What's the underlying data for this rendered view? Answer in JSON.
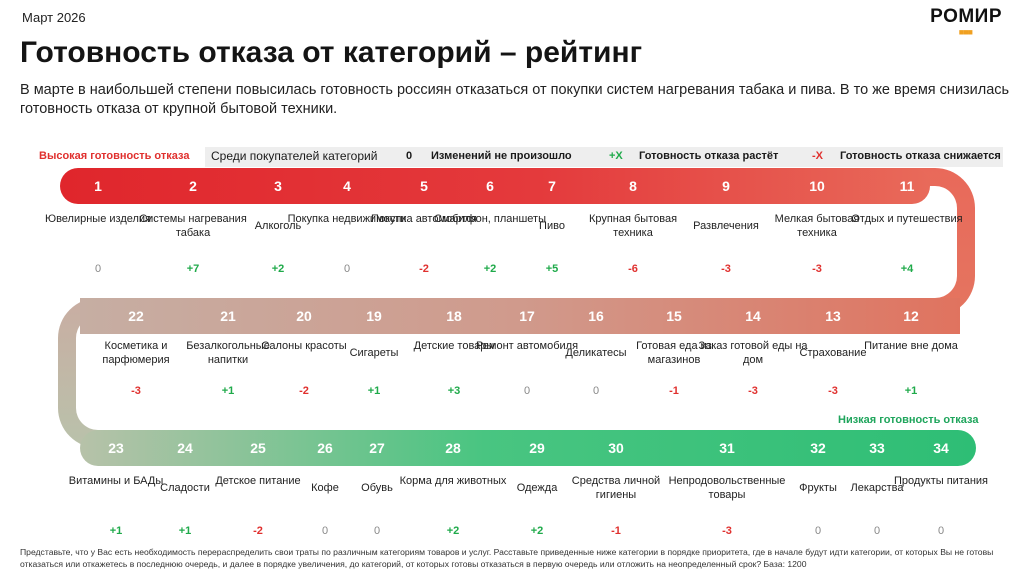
{
  "date": "Март 2026",
  "logo": "РОМИР",
  "title": "Готовность отказа от категорий – рейтинг",
  "subtitle": "В марте в наибольшей степени повысилась готовность россиян отказаться от покупки систем нагревания табака и пива. В то же время снизилась готовность отказа от крупной бытовой техники.",
  "legend": {
    "high": "Высокая готовность отказа",
    "among_buyers": "Среди покупателей категорий",
    "zero_symbol": "0",
    "zero_text": "Изменений не произошло",
    "plus_symbol": "+X",
    "plus_text": "Готовность отказа растёт",
    "minus_symbol": "-X",
    "minus_text": "Готовность отказа снижается",
    "low": "Низкая готовность отказа"
  },
  "colors": {
    "red": "#e0302e",
    "green": "#2ec27a",
    "mid": "#c9a99a"
  },
  "chart_data": {
    "type": "table",
    "title": "Готовность отказа от категорий – рейтинг",
    "rows": [
      [
        {
          "rank": "1",
          "name": "Ювелирные изделия",
          "change": "0",
          "sign": "zero"
        },
        {
          "rank": "2",
          "name": "Системы нагревания табака",
          "change": "+7",
          "sign": "pos"
        },
        {
          "rank": "3",
          "name": "Алкоголь",
          "change": "+2",
          "sign": "pos"
        },
        {
          "rank": "4",
          "name": "Покупка недвижимости",
          "change": "0",
          "sign": "zero"
        },
        {
          "rank": "5",
          "name": "Покупка автомобиля",
          "change": "-2",
          "sign": "neg"
        },
        {
          "rank": "6",
          "name": "Смартфон, планшеты",
          "change": "+2",
          "sign": "pos"
        },
        {
          "rank": "7",
          "name": "Пиво",
          "change": "+5",
          "sign": "pos"
        },
        {
          "rank": "8",
          "name": "Крупная бытовая техника",
          "change": "-6",
          "sign": "neg"
        },
        {
          "rank": "9",
          "name": "Развлечения",
          "change": "-3",
          "sign": "neg"
        },
        {
          "rank": "10",
          "name": "Мелкая бытовая техника",
          "change": "-3",
          "sign": "neg"
        },
        {
          "rank": "11",
          "name": "Отдых и путешествия",
          "change": "+4",
          "sign": "pos"
        }
      ],
      [
        {
          "rank": "22",
          "name": "Косметика и парфюмерия",
          "change": "-3",
          "sign": "neg"
        },
        {
          "rank": "21",
          "name": "Безалкогольные напитки",
          "change": "+1",
          "sign": "pos"
        },
        {
          "rank": "20",
          "name": "Салоны красоты",
          "change": "-2",
          "sign": "neg"
        },
        {
          "rank": "19",
          "name": "Сигареты",
          "change": "+1",
          "sign": "pos"
        },
        {
          "rank": "18",
          "name": "Детские товары",
          "change": "+3",
          "sign": "pos"
        },
        {
          "rank": "17",
          "name": "Ремонт автомобиля",
          "change": "0",
          "sign": "zero"
        },
        {
          "rank": "16",
          "name": "Деликатесы",
          "change": "0",
          "sign": "zero"
        },
        {
          "rank": "15",
          "name": "Готовая еда из магазинов",
          "change": "-1",
          "sign": "neg"
        },
        {
          "rank": "14",
          "name": "Заказ готовой еды на дом",
          "change": "-3",
          "sign": "neg"
        },
        {
          "rank": "13",
          "name": "Страхование",
          "change": "-3",
          "sign": "neg"
        },
        {
          "rank": "12",
          "name": "Питание вне дома",
          "change": "+1",
          "sign": "pos"
        }
      ],
      [
        {
          "rank": "23",
          "name": "Витамины и БАДы",
          "change": "+1",
          "sign": "pos"
        },
        {
          "rank": "24",
          "name": "Сладости",
          "change": "+1",
          "sign": "pos"
        },
        {
          "rank": "25",
          "name": "Детское питание",
          "change": "-2",
          "sign": "neg"
        },
        {
          "rank": "26",
          "name": "Кофе",
          "change": "0",
          "sign": "zero"
        },
        {
          "rank": "27",
          "name": "Обувь",
          "change": "0",
          "sign": "zero"
        },
        {
          "rank": "28",
          "name": "Корма для животных",
          "change": "+2",
          "sign": "pos"
        },
        {
          "rank": "29",
          "name": "Одежда",
          "change": "+2",
          "sign": "pos"
        },
        {
          "rank": "30",
          "name": "Средства личной гигиены",
          "change": "-1",
          "sign": "neg"
        },
        {
          "rank": "31",
          "name": "Непродовольственные товары",
          "change": "-3",
          "sign": "neg"
        },
        {
          "rank": "32",
          "name": "Фрукты",
          "change": "0",
          "sign": "zero"
        },
        {
          "rank": "33",
          "name": "Лекарства",
          "change": "0",
          "sign": "zero"
        },
        {
          "rank": "34",
          "name": "Продукты питания",
          "change": "0",
          "sign": "zero"
        }
      ]
    ]
  },
  "footnote": "Представьте, что у Вас есть необходимость перераспределить свои траты по различным категориям товаров и услуг. Расставьте приведенные ниже категории в порядке приоритета, где в начале будут идти категории, от которых Вы не готовы отказаться или откажетесь в последнюю очередь, и далее в порядке увеличения, до категорий, от которых готовы отказаться в первую очередь или отложить на неопределенный срок? База: 1200"
}
